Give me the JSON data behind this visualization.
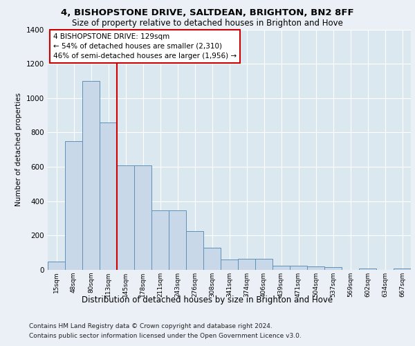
{
  "title1": "4, BISHOPSTONE DRIVE, SALTDEAN, BRIGHTON, BN2 8FF",
  "title2": "Size of property relative to detached houses in Brighton and Hove",
  "xlabel": "Distribution of detached houses by size in Brighton and Hove",
  "ylabel": "Number of detached properties",
  "footnote1": "Contains HM Land Registry data © Crown copyright and database right 2024.",
  "footnote2": "Contains public sector information licensed under the Open Government Licence v3.0.",
  "annotation_line1": "4 BISHOPSTONE DRIVE: 129sqm",
  "annotation_line2": "← 54% of detached houses are smaller (2,310)",
  "annotation_line3": "46% of semi-detached houses are larger (1,956) →",
  "bar_color": "#c8d8e8",
  "bar_edge_color": "#6090b8",
  "red_line_color": "#cc0000",
  "background_color": "#eaf0f6",
  "plot_bg_color": "#dce8f0",
  "categories": [
    "15sqm",
    "48sqm",
    "80sqm",
    "113sqm",
    "145sqm",
    "178sqm",
    "211sqm",
    "243sqm",
    "276sqm",
    "308sqm",
    "341sqm",
    "374sqm",
    "406sqm",
    "439sqm",
    "471sqm",
    "504sqm",
    "537sqm",
    "569sqm",
    "602sqm",
    "634sqm",
    "667sqm"
  ],
  "values": [
    50,
    750,
    1100,
    860,
    610,
    610,
    345,
    345,
    225,
    130,
    60,
    65,
    65,
    25,
    25,
    20,
    15,
    2,
    10,
    2,
    10
  ],
  "ylim": [
    0,
    1400
  ],
  "yticks": [
    0,
    200,
    400,
    600,
    800,
    1000,
    1200,
    1400
  ],
  "red_line_x": 3.5,
  "title1_fontsize": 9.5,
  "title2_fontsize": 8.5,
  "ylabel_fontsize": 7.5,
  "xlabel_fontsize": 8.5,
  "tick_fontsize": 7.5,
  "xtick_fontsize": 6.5,
  "annotation_fontsize": 7.5,
  "footnote_fontsize": 6.5
}
